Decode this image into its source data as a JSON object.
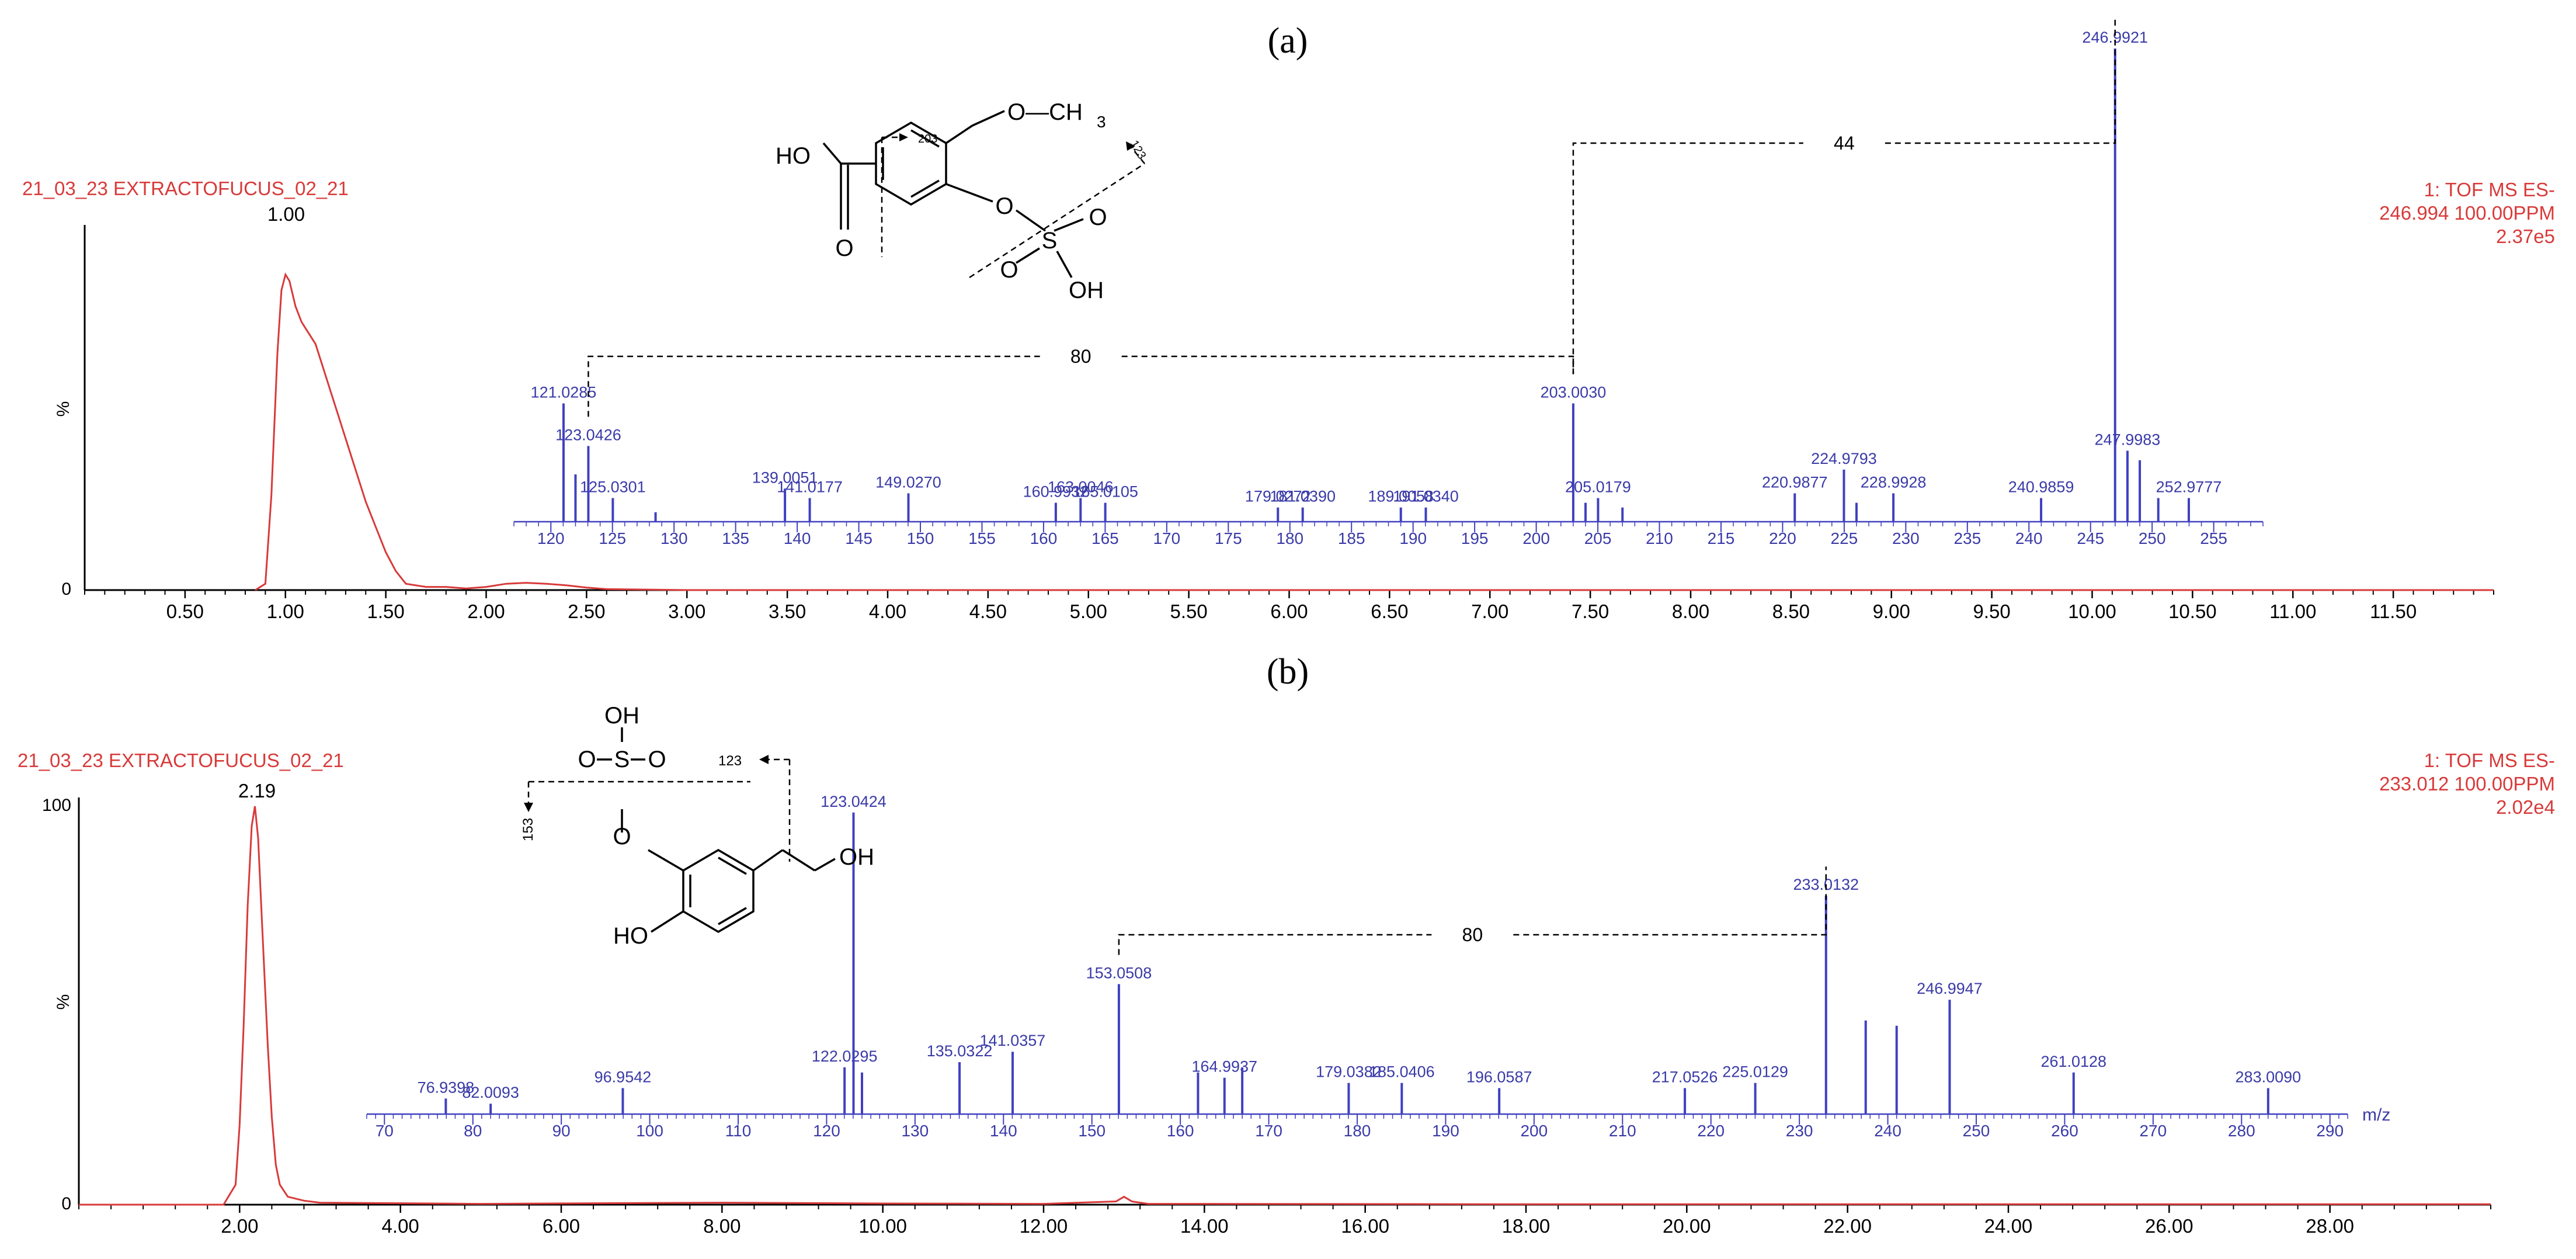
{
  "colors": {
    "chromatogram": "#d83a3a",
    "spectrum": "#4040c0",
    "axis": "#000000",
    "header_text": "#d83a3a"
  },
  "chart_data": [
    {
      "panel": "(a)",
      "type": "line",
      "sample_name": "21_03_23 EXTRACTOFUCUS_02_21",
      "trace_info": [
        "1: TOF MS ES-",
        "246.994 100.00PPM",
        "2.37e5"
      ],
      "peak_label": "1.00",
      "ylabel": "%",
      "y_ticks": [
        "0"
      ],
      "xlim": [
        0,
        12.0
      ],
      "x_ticks": [
        0.5,
        1.0,
        1.5,
        2.0,
        2.5,
        3.0,
        3.5,
        4.0,
        4.5,
        5.0,
        5.5,
        6.0,
        6.5,
        7.0,
        7.5,
        8.0,
        8.5,
        9.0,
        9.5,
        10.0,
        10.5,
        11.0,
        11.5
      ],
      "x_tick_labels": [
        "0.50",
        "1.00",
        "1.50",
        "2.00",
        "2.50",
        "3.00",
        "3.50",
        "4.00",
        "4.50",
        "5.00",
        "5.50",
        "6.00",
        "6.50",
        "7.00",
        "7.50",
        "8.00",
        "8.50",
        "9.00",
        "9.50",
        "10.00",
        "10.50",
        "11.00",
        "11.50"
      ],
      "series": [
        {
          "x": [
            0.85,
            0.9,
            0.93,
            0.96,
            0.98,
            1.0,
            1.02,
            1.05,
            1.08,
            1.1,
            1.15,
            1.2,
            1.25,
            1.3,
            1.35,
            1.4,
            1.45,
            1.5,
            1.55,
            1.6,
            1.7,
            1.8,
            1.9,
            2.0,
            2.1,
            2.2,
            2.3,
            2.4,
            2.5,
            2.6,
            3.0,
            4.0,
            6.0,
            8.0,
            10.0,
            12.0
          ],
          "y": [
            0,
            2,
            30,
            75,
            95,
            100,
            98,
            90,
            85,
            83,
            78,
            68,
            58,
            48,
            38,
            28,
            20,
            12,
            6,
            2,
            1,
            1,
            0.5,
            1,
            2,
            2.3,
            2,
            1.5,
            0.8,
            0.3,
            0,
            0,
            0,
            0,
            0,
            0
          ]
        }
      ],
      "inset_spectrum": {
        "type": "bar",
        "xlim": [
          117,
          259
        ],
        "x_ticks": [
          120,
          125,
          130,
          135,
          140,
          145,
          150,
          155,
          160,
          165,
          170,
          175,
          180,
          185,
          190,
          195,
          200,
          205,
          210,
          215,
          220,
          225,
          230,
          235,
          240,
          245,
          250,
          255
        ],
        "peaks": [
          {
            "mz": 121.0285,
            "intensity": 25,
            "label": "121.0285"
          },
          {
            "mz": 122.0,
            "intensity": 10
          },
          {
            "mz": 123.0426,
            "intensity": 16,
            "label": "123.0426"
          },
          {
            "mz": 125.0301,
            "intensity": 5,
            "label": "125.0301"
          },
          {
            "mz": 128.5,
            "intensity": 2
          },
          {
            "mz": 139.0051,
            "intensity": 7,
            "label": "139.0051"
          },
          {
            "mz": 141.0177,
            "intensity": 5,
            "label": "141.0177"
          },
          {
            "mz": 149.027,
            "intensity": 6,
            "label": "149.0270"
          },
          {
            "mz": 160.9932,
            "intensity": 4,
            "label": "160.9932"
          },
          {
            "mz": 163.0046,
            "intensity": 5,
            "label": "163.0046"
          },
          {
            "mz": 165.0105,
            "intensity": 4,
            "label": "165.0105"
          },
          {
            "mz": 179.0272,
            "intensity": 3,
            "label": "179.0272"
          },
          {
            "mz": 181.039,
            "intensity": 3,
            "label": "181.0390"
          },
          {
            "mz": 189.0058,
            "intensity": 3,
            "label": "189.0058"
          },
          {
            "mz": 191.034,
            "intensity": 3,
            "label": "191.0340"
          },
          {
            "mz": 203.003,
            "intensity": 25,
            "label": "203.0030"
          },
          {
            "mz": 204.0,
            "intensity": 4
          },
          {
            "mz": 205.0179,
            "intensity": 5,
            "label": "205.0179"
          },
          {
            "mz": 207.0,
            "intensity": 3
          },
          {
            "mz": 220.9877,
            "intensity": 6,
            "label": "220.9877"
          },
          {
            "mz": 224.9793,
            "intensity": 11,
            "label": "224.9793"
          },
          {
            "mz": 226.0,
            "intensity": 4
          },
          {
            "mz": 228.9928,
            "intensity": 6,
            "label": "228.9928"
          },
          {
            "mz": 240.9859,
            "intensity": 5,
            "label": "240.9859"
          },
          {
            "mz": 246.9921,
            "intensity": 100,
            "label": "246.9921"
          },
          {
            "mz": 247.9983,
            "intensity": 15,
            "label": "247.9983"
          },
          {
            "mz": 249.0,
            "intensity": 13
          },
          {
            "mz": 250.5,
            "intensity": 5
          },
          {
            "mz": 252.9777,
            "intensity": 5,
            "label": "252.9777"
          }
        ],
        "annotations": [
          {
            "label": "80",
            "from": 123.0426,
            "to": 203.003
          },
          {
            "label": "44",
            "from": 203.003,
            "to": 246.9921
          }
        ]
      },
      "structure_labels": {
        "hydroxyl": "HO",
        "methoxy": "O—CH",
        "methoxy_sub": "3",
        "carbonyl": "O",
        "ring_oxygen": "O",
        "sulfur": "S",
        "sulfonyl_o1": "O",
        "sulfonyl_o2": "O",
        "sulfonic_oh": "OH",
        "frag1": "203",
        "frag2": "123"
      }
    },
    {
      "panel": "(b)",
      "type": "line",
      "sample_name": "21_03_23 EXTRACTOFUCUS_02_21",
      "trace_info": [
        "1: TOF MS ES-",
        "233.012 100.00PPM",
        "2.02e4"
      ],
      "peak_label": "2.19",
      "ylabel": "%",
      "y_ticks": [
        "0",
        "100"
      ],
      "xlim": [
        0,
        30.0
      ],
      "x_ticks": [
        2,
        4,
        6,
        8,
        10,
        12,
        14,
        16,
        18,
        20,
        22,
        24,
        26,
        28
      ],
      "x_tick_labels": [
        "2.00",
        "4.00",
        "6.00",
        "8.00",
        "10.00",
        "12.00",
        "14.00",
        "16.00",
        "18.00",
        "20.00",
        "22.00",
        "24.00",
        "26.00",
        "28.00"
      ],
      "series": [
        {
          "x": [
            0,
            1.8,
            1.95,
            2.0,
            2.05,
            2.1,
            2.15,
            2.19,
            2.23,
            2.28,
            2.35,
            2.4,
            2.45,
            2.5,
            2.6,
            2.8,
            3.0,
            5,
            8,
            10,
            12,
            12.9,
            13.0,
            13.1,
            13.3,
            14,
            18,
            22,
            26,
            30
          ],
          "y": [
            0,
            0,
            5,
            20,
            45,
            75,
            95,
            100,
            92,
            70,
            40,
            22,
            10,
            5,
            2,
            1,
            0.5,
            0.2,
            0.5,
            0.3,
            0.2,
            0.8,
            2,
            0.8,
            0.2,
            0.2,
            0.1,
            0.1,
            0.1,
            0.1
          ]
        }
      ],
      "inset_spectrum": {
        "type": "bar",
        "xlim": [
          68,
          292
        ],
        "x_ticks": [
          70,
          80,
          90,
          100,
          110,
          120,
          130,
          140,
          150,
          160,
          170,
          180,
          190,
          200,
          210,
          220,
          230,
          240,
          250,
          260,
          270,
          280,
          290
        ],
        "x_unit": "m/z",
        "peaks": [
          {
            "mz": 76.9398,
            "intensity": 3,
            "label": "76.9398"
          },
          {
            "mz": 82.0093,
            "intensity": 2,
            "label": "82.0093"
          },
          {
            "mz": 96.9542,
            "intensity": 5,
            "label": "96.9542"
          },
          {
            "mz": 122.0295,
            "intensity": 9,
            "label": "122.0295"
          },
          {
            "mz": 123.0424,
            "intensity": 58,
            "label": "123.0424"
          },
          {
            "mz": 124.0,
            "intensity": 8
          },
          {
            "mz": 135.0322,
            "intensity": 10,
            "label": "135.0322"
          },
          {
            "mz": 141.0357,
            "intensity": 12,
            "label": "141.0357"
          },
          {
            "mz": 153.0508,
            "intensity": 25,
            "label": "153.0508"
          },
          {
            "mz": 162.0,
            "intensity": 8
          },
          {
            "mz": 164.9937,
            "intensity": 7,
            "label": "164.9937"
          },
          {
            "mz": 167.0,
            "intensity": 9
          },
          {
            "mz": 179.0382,
            "intensity": 6,
            "label": "179.0382"
          },
          {
            "mz": 185.0406,
            "intensity": 6,
            "label": "185.0406"
          },
          {
            "mz": 196.0587,
            "intensity": 5,
            "label": "196.0587"
          },
          {
            "mz": 217.0526,
            "intensity": 5,
            "label": "217.0526"
          },
          {
            "mz": 225.0129,
            "intensity": 6,
            "label": "225.0129"
          },
          {
            "mz": 233.0132,
            "intensity": 42,
            "label": "233.0132"
          },
          {
            "mz": 237.5,
            "intensity": 18
          },
          {
            "mz": 241.0,
            "intensity": 17
          },
          {
            "mz": 246.9947,
            "intensity": 22,
            "label": "246.9947"
          },
          {
            "mz": 261.0128,
            "intensity": 8,
            "label": "261.0128"
          },
          {
            "mz": 283.009,
            "intensity": 5,
            "label": "283.0090"
          }
        ],
        "annotations": [
          {
            "label": "80",
            "from": 153.0508,
            "to": 233.0132
          }
        ]
      },
      "structure_labels": {
        "sulfonic_oh": "OH",
        "sulfonyl_o1": "O",
        "sulfonyl_o2": "O",
        "sulfur": "S",
        "ring_oxygen": "O",
        "phenol": "HO",
        "chain_oh": "OH",
        "frag1": "153",
        "frag2": "123"
      }
    }
  ]
}
